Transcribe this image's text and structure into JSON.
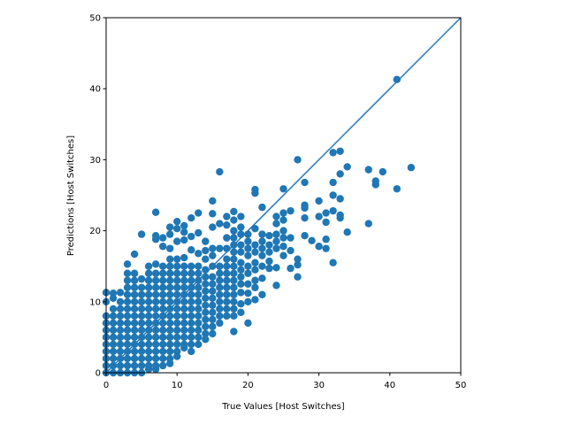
{
  "chart_data": {
    "type": "scatter",
    "title": "",
    "xlabel": "True Values [Host Switches]",
    "ylabel": "Predictions [Host Switches]",
    "xlim": [
      0,
      50
    ],
    "ylim": [
      0,
      50
    ],
    "xticks": [
      "0",
      "10",
      "20",
      "30",
      "40",
      "50"
    ],
    "yticks": [
      "0",
      "10",
      "20",
      "30",
      "40",
      "50"
    ],
    "grid": false,
    "marker_color": "#1f77b4",
    "reference_line": {
      "x": [
        0,
        50
      ],
      "y": [
        0,
        50
      ],
      "color": "#1f77b4"
    },
    "points": [
      [
        0,
        0
      ],
      [
        0,
        1
      ],
      [
        0,
        2
      ],
      [
        0,
        3
      ],
      [
        0,
        4
      ],
      [
        0,
        5
      ],
      [
        0,
        6
      ],
      [
        0,
        7
      ],
      [
        0,
        8
      ],
      [
        0,
        10
      ],
      [
        0,
        11.3
      ],
      [
        1,
        0
      ],
      [
        1,
        1
      ],
      [
        1,
        2
      ],
      [
        1,
        3
      ],
      [
        1,
        4
      ],
      [
        1,
        5
      ],
      [
        1,
        6
      ],
      [
        1,
        7
      ],
      [
        1,
        8
      ],
      [
        1,
        9
      ],
      [
        1,
        10.5
      ],
      [
        1,
        11.2
      ],
      [
        2,
        0
      ],
      [
        2,
        1
      ],
      [
        2,
        2
      ],
      [
        2,
        3
      ],
      [
        2,
        4
      ],
      [
        2,
        5
      ],
      [
        2,
        6
      ],
      [
        2,
        7
      ],
      [
        2,
        8
      ],
      [
        2,
        9
      ],
      [
        2,
        10
      ],
      [
        2,
        11.3
      ],
      [
        3,
        0
      ],
      [
        3,
        1
      ],
      [
        3,
        2
      ],
      [
        3,
        3
      ],
      [
        3,
        4
      ],
      [
        3,
        5
      ],
      [
        3,
        6
      ],
      [
        3,
        7
      ],
      [
        3,
        8
      ],
      [
        3,
        9
      ],
      [
        3,
        10
      ],
      [
        3,
        11
      ],
      [
        3,
        12
      ],
      [
        3,
        13
      ],
      [
        3,
        14
      ],
      [
        3,
        15.3
      ],
      [
        4,
        0
      ],
      [
        4,
        1
      ],
      [
        4,
        2
      ],
      [
        4,
        3
      ],
      [
        4,
        4
      ],
      [
        4,
        5
      ],
      [
        4,
        6
      ],
      [
        4,
        7
      ],
      [
        4,
        8
      ],
      [
        4,
        9
      ],
      [
        4,
        10
      ],
      [
        4,
        11
      ],
      [
        4,
        12
      ],
      [
        4,
        13
      ],
      [
        4,
        14
      ],
      [
        4,
        16.7
      ],
      [
        5,
        0
      ],
      [
        5,
        1
      ],
      [
        5,
        2
      ],
      [
        5,
        3
      ],
      [
        5,
        4
      ],
      [
        5,
        5
      ],
      [
        5,
        6
      ],
      [
        5,
        7
      ],
      [
        5,
        8
      ],
      [
        5,
        9
      ],
      [
        5,
        10
      ],
      [
        5,
        11
      ],
      [
        5,
        12
      ],
      [
        5,
        13.2
      ],
      [
        5,
        19.5
      ],
      [
        6,
        0.5
      ],
      [
        6,
        1
      ],
      [
        6,
        2
      ],
      [
        6,
        3
      ],
      [
        6,
        4
      ],
      [
        6,
        5
      ],
      [
        6,
        6
      ],
      [
        6,
        7
      ],
      [
        6,
        8
      ],
      [
        6,
        9
      ],
      [
        6,
        10
      ],
      [
        6,
        11
      ],
      [
        6,
        12
      ],
      [
        6,
        13
      ],
      [
        6,
        14
      ],
      [
        6,
        15
      ],
      [
        7,
        0.5
      ],
      [
        7,
        1
      ],
      [
        7,
        2
      ],
      [
        7,
        3
      ],
      [
        7,
        4
      ],
      [
        7,
        5
      ],
      [
        7,
        6
      ],
      [
        7,
        7
      ],
      [
        7,
        8
      ],
      [
        7,
        9
      ],
      [
        7,
        10
      ],
      [
        7,
        11
      ],
      [
        7,
        12
      ],
      [
        7,
        13
      ],
      [
        7,
        14
      ],
      [
        7,
        15.3
      ],
      [
        7,
        18.8
      ],
      [
        7,
        19.3
      ],
      [
        7,
        22.6
      ],
      [
        8,
        1
      ],
      [
        8,
        2
      ],
      [
        8,
        3
      ],
      [
        8,
        4
      ],
      [
        8,
        5
      ],
      [
        8,
        6
      ],
      [
        8,
        7
      ],
      [
        8,
        8
      ],
      [
        8,
        9
      ],
      [
        8,
        10
      ],
      [
        8,
        11
      ],
      [
        8,
        12
      ],
      [
        8,
        13
      ],
      [
        8,
        14
      ],
      [
        8,
        15
      ],
      [
        8,
        17.8
      ],
      [
        8,
        19
      ],
      [
        9,
        1.3
      ],
      [
        9,
        2
      ],
      [
        9,
        3
      ],
      [
        9,
        4
      ],
      [
        9,
        5
      ],
      [
        9,
        6
      ],
      [
        9,
        7
      ],
      [
        9,
        8
      ],
      [
        9,
        9
      ],
      [
        9,
        10
      ],
      [
        9,
        11
      ],
      [
        9,
        12
      ],
      [
        9,
        13
      ],
      [
        9,
        14
      ],
      [
        9,
        15
      ],
      [
        9,
        16
      ],
      [
        9,
        17.5
      ],
      [
        9,
        19.5
      ],
      [
        9,
        20.5
      ],
      [
        10,
        2.3
      ],
      [
        10,
        3
      ],
      [
        10,
        4
      ],
      [
        10,
        5
      ],
      [
        10,
        6
      ],
      [
        10,
        7
      ],
      [
        10,
        8
      ],
      [
        10,
        9
      ],
      [
        10,
        10
      ],
      [
        10,
        11
      ],
      [
        10,
        12
      ],
      [
        10,
        13
      ],
      [
        10,
        14
      ],
      [
        10,
        15
      ],
      [
        10,
        16
      ],
      [
        10,
        18.5
      ],
      [
        10,
        20.3
      ],
      [
        10,
        21.3
      ],
      [
        11,
        3.5
      ],
      [
        11,
        4
      ],
      [
        11,
        5
      ],
      [
        11,
        6
      ],
      [
        11,
        7
      ],
      [
        11,
        8
      ],
      [
        11,
        9
      ],
      [
        11,
        10
      ],
      [
        11,
        11
      ],
      [
        11,
        12
      ],
      [
        11,
        13
      ],
      [
        11,
        14
      ],
      [
        11,
        15
      ],
      [
        11,
        16.2
      ],
      [
        11,
        18.7
      ],
      [
        11,
        19.8
      ],
      [
        11,
        20.7
      ],
      [
        12,
        3
      ],
      [
        12,
        4
      ],
      [
        12,
        5
      ],
      [
        12,
        6
      ],
      [
        12,
        7
      ],
      [
        12,
        8
      ],
      [
        12,
        9
      ],
      [
        12,
        10
      ],
      [
        12,
        11
      ],
      [
        12,
        12
      ],
      [
        12,
        13
      ],
      [
        12,
        14
      ],
      [
        12,
        15
      ],
      [
        12,
        17.3
      ],
      [
        12,
        19.2
      ],
      [
        12,
        21.8
      ],
      [
        13,
        4
      ],
      [
        13,
        5
      ],
      [
        13,
        6
      ],
      [
        13,
        7
      ],
      [
        13,
        8
      ],
      [
        13,
        9
      ],
      [
        13,
        10
      ],
      [
        13,
        11
      ],
      [
        13,
        12
      ],
      [
        13,
        13
      ],
      [
        13,
        14
      ],
      [
        13,
        15
      ],
      [
        13,
        16.8
      ],
      [
        13,
        19.7
      ],
      [
        13,
        22.5
      ],
      [
        14,
        4.7
      ],
      [
        14,
        5.5
      ],
      [
        14,
        6.5
      ],
      [
        14,
        7.5
      ],
      [
        14,
        8.5
      ],
      [
        14,
        9.5
      ],
      [
        14,
        10.5
      ],
      [
        14,
        11.5
      ],
      [
        14,
        12.5
      ],
      [
        14,
        13.5
      ],
      [
        14,
        14.5
      ],
      [
        14,
        16
      ],
      [
        14,
        17.2
      ],
      [
        14,
        18.5
      ],
      [
        15,
        5.5
      ],
      [
        15,
        6.5
      ],
      [
        15,
        7.5
      ],
      [
        15,
        8.5
      ],
      [
        15,
        9.5
      ],
      [
        15,
        10.5
      ],
      [
        15,
        11.5
      ],
      [
        15,
        12.5
      ],
      [
        15,
        13.5
      ],
      [
        15,
        15
      ],
      [
        15,
        16.5
      ],
      [
        15,
        17.5
      ],
      [
        15,
        20.5
      ],
      [
        15,
        22.4
      ],
      [
        15,
        24.2
      ],
      [
        16,
        7
      ],
      [
        16,
        8
      ],
      [
        16,
        9
      ],
      [
        16,
        10
      ],
      [
        16,
        11
      ],
      [
        16,
        12
      ],
      [
        16,
        13
      ],
      [
        16,
        14
      ],
      [
        16,
        15
      ],
      [
        16,
        17.5
      ],
      [
        16,
        21
      ],
      [
        16,
        28.3
      ],
      [
        17,
        8
      ],
      [
        17,
        9
      ],
      [
        17,
        10
      ],
      [
        17,
        11
      ],
      [
        17,
        12
      ],
      [
        17,
        13
      ],
      [
        17,
        14
      ],
      [
        17,
        15
      ],
      [
        17,
        16
      ],
      [
        17,
        17.5
      ],
      [
        17,
        19
      ],
      [
        17,
        20.8
      ],
      [
        17,
        22
      ],
      [
        18,
        5.8
      ],
      [
        18,
        8
      ],
      [
        18,
        9
      ],
      [
        18,
        10
      ],
      [
        18,
        11
      ],
      [
        18,
        12
      ],
      [
        18,
        13
      ],
      [
        18,
        14
      ],
      [
        18,
        15
      ],
      [
        18,
        16
      ],
      [
        18,
        17
      ],
      [
        18,
        18
      ],
      [
        18,
        19
      ],
      [
        18,
        20
      ],
      [
        18,
        21.5
      ],
      [
        18,
        22.7
      ],
      [
        19,
        8.5
      ],
      [
        19,
        9.7
      ],
      [
        19,
        11.3
      ],
      [
        19,
        12.5
      ],
      [
        19,
        13.5
      ],
      [
        19,
        14.5
      ],
      [
        19,
        15.5
      ],
      [
        19,
        17
      ],
      [
        19,
        18
      ],
      [
        19,
        19.5
      ],
      [
        19,
        20.5
      ],
      [
        19,
        22
      ],
      [
        20,
        7
      ],
      [
        20,
        10
      ],
      [
        20,
        11.2
      ],
      [
        20,
        12.5
      ],
      [
        20,
        14
      ],
      [
        20,
        15
      ],
      [
        20,
        16.5
      ],
      [
        20,
        17.5
      ],
      [
        20,
        18.5
      ],
      [
        20,
        19.5
      ],
      [
        21,
        10.3
      ],
      [
        21,
        12
      ],
      [
        21,
        13
      ],
      [
        21,
        14.5
      ],
      [
        21,
        15.5
      ],
      [
        21,
        17
      ],
      [
        21,
        18
      ],
      [
        21,
        20.3
      ],
      [
        21,
        25.3
      ],
      [
        21,
        25.8
      ],
      [
        22,
        11
      ],
      [
        22,
        13.3
      ],
      [
        22,
        15
      ],
      [
        22,
        16.5
      ],
      [
        22,
        17.5
      ],
      [
        22,
        18.5
      ],
      [
        22,
        19.5
      ],
      [
        22,
        23.3
      ],
      [
        23,
        14.7
      ],
      [
        23,
        15.7
      ],
      [
        23,
        17
      ],
      [
        23,
        18
      ],
      [
        23,
        19.3
      ],
      [
        24,
        12.3
      ],
      [
        24,
        14.8
      ],
      [
        24,
        17.5
      ],
      [
        24,
        18.5
      ],
      [
        24,
        19.5
      ],
      [
        24,
        21
      ],
      [
        24,
        22
      ],
      [
        25,
        16.5
      ],
      [
        25,
        17.8
      ],
      [
        25,
        19
      ],
      [
        25,
        20
      ],
      [
        25,
        21.5
      ],
      [
        25,
        22.5
      ],
      [
        25,
        25.9
      ],
      [
        26,
        14.7
      ],
      [
        26,
        17.2
      ],
      [
        26,
        19
      ],
      [
        26,
        22.8
      ],
      [
        27,
        13.5
      ],
      [
        27,
        15.2
      ],
      [
        27,
        16
      ],
      [
        27,
        30
      ],
      [
        28,
        19.3
      ],
      [
        28,
        21.8
      ],
      [
        28,
        23.2
      ],
      [
        28,
        23.6
      ],
      [
        28,
        26.8
      ],
      [
        29,
        18.6
      ],
      [
        30,
        17.8
      ],
      [
        30,
        22
      ],
      [
        30,
        24.2
      ],
      [
        31,
        17.5
      ],
      [
        31,
        18.8
      ],
      [
        31,
        21.2
      ],
      [
        31,
        22.5
      ],
      [
        32,
        15.5
      ],
      [
        32,
        22.8
      ],
      [
        32,
        25
      ],
      [
        32,
        26.8
      ],
      [
        32,
        31
      ],
      [
        33,
        21.8
      ],
      [
        33,
        22.2
      ],
      [
        33,
        24.5
      ],
      [
        33,
        28
      ],
      [
        33,
        31.2
      ],
      [
        34,
        19.8
      ],
      [
        34,
        29
      ],
      [
        37,
        21
      ],
      [
        37,
        28.6
      ],
      [
        38,
        26.5
      ],
      [
        38,
        27
      ],
      [
        39,
        28.3
      ],
      [
        41,
        25.9
      ],
      [
        41,
        41.3
      ],
      [
        43,
        28.9
      ]
    ]
  }
}
